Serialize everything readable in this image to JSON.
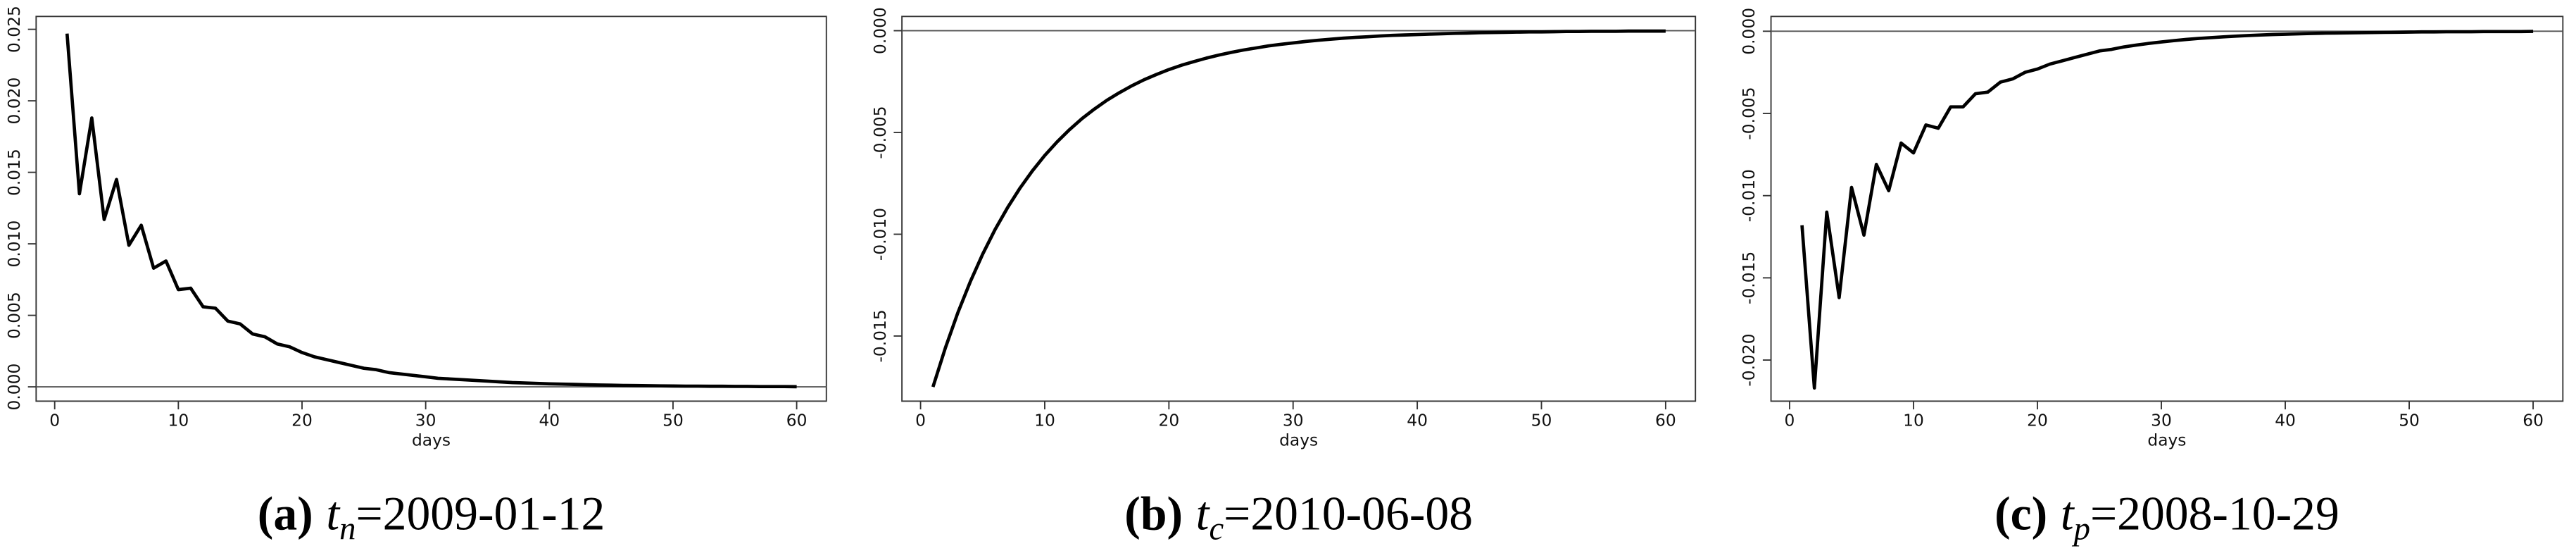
{
  "chart_data": [
    {
      "type": "line",
      "x_label": "days",
      "reference_line": 0,
      "color": "#000000",
      "caption": {
        "tag": "(a)",
        "var": "t",
        "sub": "n",
        "rest": "=2009-01-12"
      },
      "x": [
        1,
        2,
        3,
        4,
        5,
        6,
        7,
        8,
        9,
        10,
        11,
        12,
        13,
        14,
        15,
        16,
        17,
        18,
        19,
        20,
        21,
        22,
        23,
        24,
        25,
        26,
        27,
        28,
        29,
        30,
        31,
        32,
        33,
        34,
        35,
        36,
        37,
        38,
        39,
        40,
        41,
        42,
        43,
        44,
        45,
        46,
        47,
        48,
        49,
        50,
        51,
        52,
        53,
        54,
        55,
        56,
        57,
        58,
        59,
        60
      ],
      "values": [
        0.0247,
        0.0135,
        0.0188,
        0.0117,
        0.0145,
        0.0099,
        0.0113,
        0.0083,
        0.0088,
        0.0068,
        0.0069,
        0.0056,
        0.0055,
        0.0046,
        0.0044,
        0.0037,
        0.0035,
        0.003,
        0.0028,
        0.0024,
        0.0021,
        0.0019,
        0.0017,
        0.0015,
        0.0013,
        0.0012,
        0.001,
        0.0009,
        0.0008,
        0.0007,
        0.0006,
        0.00055,
        0.0005,
        0.00045,
        0.0004,
        0.00035,
        0.0003,
        0.00027,
        0.00024,
        0.00021,
        0.00019,
        0.00017,
        0.00015,
        0.00013,
        0.00012,
        0.0001,
        9e-05,
        8e-05,
        7e-05,
        6e-05,
        5e-05,
        5e-05,
        4e-05,
        4e-05,
        3e-05,
        3e-05,
        2e-05,
        2e-05,
        2e-05,
        1e-05
      ],
      "xlim": [
        -1.5,
        62.4
      ],
      "xticks": [
        0,
        10,
        20,
        30,
        40,
        50,
        60
      ],
      "ylim": [
        -0.001,
        0.0259
      ],
      "yticks": [
        {
          "value": 0,
          "label": "0.000"
        },
        {
          "value": 0.005,
          "label": "0.005"
        },
        {
          "value": 0.01,
          "label": "0.010"
        },
        {
          "value": 0.015,
          "label": "0.015"
        },
        {
          "value": 0.02,
          "label": "0.020"
        },
        {
          "value": 0.025,
          "label": "0.025"
        }
      ]
    },
    {
      "type": "line",
      "x_label": "days",
      "reference_line": 0,
      "color": "#000000",
      "caption": {
        "tag": "(b)",
        "var": "t",
        "sub": "c",
        "rest": "=2010-06-08"
      },
      "x": [
        1,
        2,
        3,
        4,
        5,
        6,
        7,
        8,
        9,
        10,
        11,
        12,
        13,
        14,
        15,
        16,
        17,
        18,
        19,
        20,
        21,
        22,
        23,
        24,
        25,
        26,
        27,
        28,
        29,
        30,
        31,
        32,
        33,
        34,
        35,
        36,
        37,
        38,
        39,
        40,
        41,
        42,
        43,
        44,
        45,
        46,
        47,
        48,
        49,
        50,
        51,
        52,
        53,
        54,
        55,
        56,
        57,
        58,
        59,
        60
      ],
      "values": [
        -0.0175,
        -0.01558,
        -0.01386,
        -0.01234,
        -0.01098,
        -0.00977,
        -0.0087,
        -0.00774,
        -0.00689,
        -0.00613,
        -0.00546,
        -0.00486,
        -0.00432,
        -0.00385,
        -0.00342,
        -0.00305,
        -0.00271,
        -0.00241,
        -0.00215,
        -0.00191,
        -0.0017,
        -0.00152,
        -0.00135,
        -0.0012,
        -0.00107,
        -0.00095,
        -0.00085,
        -0.00075,
        -0.00067,
        -0.0006,
        -0.00053,
        -0.00047,
        -0.00042,
        -0.00037,
        -0.00033,
        -0.0003,
        -0.00026,
        -0.00023,
        -0.00021,
        -0.00019,
        -0.00017,
        -0.00015,
        -0.00013,
        -0.00012,
        -0.0001,
        -9e-05,
        -8e-05,
        -7e-05,
        -6e-05,
        -6e-05,
        -5e-05,
        -4e-05,
        -4e-05,
        -3e-05,
        -3e-05,
        -3e-05,
        -2e-05,
        -2e-05,
        -2e-05,
        -2e-05
      ],
      "xlim": [
        -1.5,
        62.4
      ],
      "xticks": [
        0,
        10,
        20,
        30,
        40,
        50,
        60
      ],
      "ylim": [
        -0.0182,
        0.0007
      ],
      "yticks": [
        {
          "value": -0.015,
          "label": "-0.015"
        },
        {
          "value": -0.01,
          "label": "-0.010"
        },
        {
          "value": -0.005,
          "label": "-0.005"
        },
        {
          "value": 0,
          "label": "0.000"
        }
      ]
    },
    {
      "type": "line",
      "x_label": "days",
      "reference_line": 0,
      "color": "#000000",
      "caption": {
        "tag": "(c)",
        "var": "t",
        "sub": "p",
        "rest": "=2008-10-29"
      },
      "x": [
        1,
        2,
        3,
        4,
        5,
        6,
        7,
        8,
        9,
        10,
        11,
        12,
        13,
        14,
        15,
        16,
        17,
        18,
        19,
        20,
        21,
        22,
        23,
        24,
        25,
        26,
        27,
        28,
        29,
        30,
        31,
        32,
        33,
        34,
        35,
        36,
        37,
        38,
        39,
        40,
        41,
        42,
        43,
        44,
        45,
        46,
        47,
        48,
        49,
        50,
        51,
        52,
        53,
        54,
        55,
        56,
        57,
        58,
        59,
        60
      ],
      "values": [
        -0.0118,
        -0.0217,
        -0.011,
        -0.0162,
        -0.0095,
        -0.0124,
        -0.0081,
        -0.0097,
        -0.0068,
        -0.0074,
        -0.0057,
        -0.0059,
        -0.0046,
        -0.0046,
        -0.0038,
        -0.0037,
        -0.0031,
        -0.0029,
        -0.0025,
        -0.0023,
        -0.002,
        -0.0018,
        -0.0016,
        -0.0014,
        -0.0012,
        -0.0011,
        -0.00095,
        -0.00084,
        -0.00074,
        -0.00065,
        -0.00057,
        -0.0005,
        -0.00044,
        -0.00039,
        -0.00034,
        -0.0003,
        -0.00026,
        -0.00023,
        -0.0002,
        -0.00018,
        -0.00016,
        -0.00014,
        -0.00012,
        -0.00011,
        -0.0001,
        -9e-05,
        -8e-05,
        -7e-05,
        -6e-05,
        -5e-05,
        -4e-05,
        -4e-05,
        -3e-05,
        -3e-05,
        -3e-05,
        -2e-05,
        -2e-05,
        -2e-05,
        -2e-05,
        -1e-05
      ],
      "xlim": [
        -1.5,
        62.4
      ],
      "xticks": [
        0,
        10,
        20,
        30,
        40,
        50,
        60
      ],
      "ylim": [
        -0.0225,
        0.0009
      ],
      "yticks": [
        {
          "value": -0.02,
          "label": "-0.020"
        },
        {
          "value": -0.015,
          "label": "-0.015"
        },
        {
          "value": -0.01,
          "label": "-0.010"
        },
        {
          "value": -0.005,
          "label": "-0.005"
        },
        {
          "value": 0,
          "label": "0.000"
        }
      ]
    }
  ]
}
